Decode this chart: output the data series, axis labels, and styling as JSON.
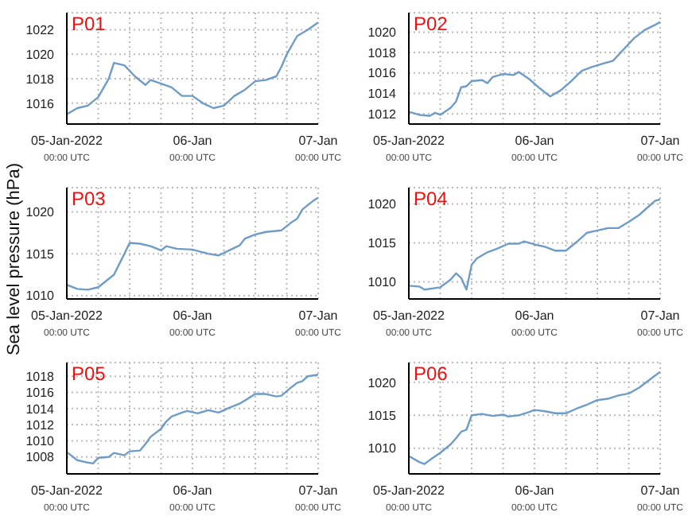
{
  "chart_data": [
    {
      "type": "line",
      "title": "P01",
      "grid": true,
      "xlim": [
        "2022-01-05T00:00",
        "2022-01-07T00:00"
      ],
      "xticks": [
        {
          "value": "2022-01-05T00:00",
          "label": "05-Jan-2022\n00:00 UTC"
        },
        {
          "value": "2022-01-05T06:00",
          "label": null
        },
        {
          "value": "2022-01-05T12:00",
          "label": null
        },
        {
          "value": "2022-01-05T18:00",
          "label": null
        },
        {
          "value": "2022-01-06T00:00",
          "label": "06-Jan\n00:00 UTC"
        },
        {
          "value": "2022-01-06T06:00",
          "label": null
        },
        {
          "value": "2022-01-06T12:00",
          "label": null
        },
        {
          "value": "2022-01-06T18:00",
          "label": null
        },
        {
          "value": "2022-01-07T00:00",
          "label": "07-Jan\n00:00 UTC"
        }
      ],
      "ylim": [
        1014.3,
        1023.4
      ],
      "yticks": [
        1016,
        1018,
        1020,
        1022
      ],
      "x": [
        "2022-01-05T00:00",
        "2022-01-05T02:00",
        "2022-01-05T04:00",
        "2022-01-05T06:00",
        "2022-01-05T08:00",
        "2022-01-05T09:00",
        "2022-01-05T11:00",
        "2022-01-05T13:00",
        "2022-01-05T15:00",
        "2022-01-05T16:00",
        "2022-01-05T18:00",
        "2022-01-05T20:00",
        "2022-01-05T22:00",
        "2022-01-06T00:00",
        "2022-01-06T02:00",
        "2022-01-06T04:00",
        "2022-01-06T06:00",
        "2022-01-06T08:00",
        "2022-01-06T10:00",
        "2022-01-06T12:00",
        "2022-01-06T14:00",
        "2022-01-06T16:00",
        "2022-01-06T17:00",
        "2022-01-06T18:00",
        "2022-01-06T20:00",
        "2022-01-06T22:00",
        "2022-01-07T00:00"
      ],
      "series": [
        {
          "color": "#6e9cc8",
          "values": [
            1015.1,
            1015.6,
            1015.8,
            1016.5,
            1018.0,
            1019.3,
            1019.1,
            1018.2,
            1017.5,
            1017.9,
            1017.6,
            1017.3,
            1016.6,
            1016.6,
            1016.0,
            1015.6,
            1015.8,
            1016.6,
            1017.1,
            1017.8,
            1017.9,
            1018.2,
            1019.0,
            1020.0,
            1021.5,
            1022.0,
            1022.6
          ]
        }
      ]
    },
    {
      "type": "line",
      "title": "P02",
      "grid": true,
      "xlim": [
        "2022-01-05T00:00",
        "2022-01-07T00:00"
      ],
      "xticks": [
        {
          "value": "2022-01-05T00:00",
          "label": "05-Jan-2022\n00:00 UTC"
        },
        {
          "value": "2022-01-05T06:00",
          "label": null
        },
        {
          "value": "2022-01-05T12:00",
          "label": null
        },
        {
          "value": "2022-01-05T18:00",
          "label": null
        },
        {
          "value": "2022-01-06T00:00",
          "label": "06-Jan\n00:00 UTC"
        },
        {
          "value": "2022-01-06T06:00",
          "label": null
        },
        {
          "value": "2022-01-06T12:00",
          "label": null
        },
        {
          "value": "2022-01-06T18:00",
          "label": null
        },
        {
          "value": "2022-01-07T00:00",
          "label": "07-Jan\n00:00 UTC"
        }
      ],
      "ylim": [
        1011,
        1021.9
      ],
      "yticks": [
        1012,
        1014,
        1016,
        1018,
        1020
      ],
      "x": [
        "2022-01-05T00:00",
        "2022-01-05T02:00",
        "2022-01-05T04:00",
        "2022-01-05T05:00",
        "2022-01-05T06:00",
        "2022-01-05T08:00",
        "2022-01-05T09:00",
        "2022-01-05T10:00",
        "2022-01-05T11:00",
        "2022-01-05T12:00",
        "2022-01-05T14:00",
        "2022-01-05T15:00",
        "2022-01-05T16:00",
        "2022-01-05T18:00",
        "2022-01-05T20:00",
        "2022-01-05T21:00",
        "2022-01-05T23:00",
        "2022-01-06T01:00",
        "2022-01-06T03:00",
        "2022-01-06T05:00",
        "2022-01-06T07:00",
        "2022-01-06T09:00",
        "2022-01-06T11:00",
        "2022-01-06T13:00",
        "2022-01-06T15:00",
        "2022-01-06T17:00",
        "2022-01-06T19:00",
        "2022-01-06T21:00",
        "2022-01-06T23:00",
        "2022-01-07T00:00"
      ],
      "series": [
        {
          "color": "#6e9cc8",
          "values": [
            1012.2,
            1011.9,
            1011.8,
            1012.1,
            1011.9,
            1012.6,
            1013.2,
            1014.6,
            1014.7,
            1015.2,
            1015.3,
            1015.0,
            1015.6,
            1015.9,
            1015.8,
            1016.1,
            1015.4,
            1014.5,
            1013.7,
            1014.3,
            1015.2,
            1016.2,
            1016.6,
            1016.9,
            1017.2,
            1018.3,
            1019.4,
            1020.2,
            1020.7,
            1021.0
          ]
        }
      ]
    },
    {
      "type": "line",
      "title": "P03",
      "ylabel": "Sea level pressure (hPa)",
      "grid": true,
      "xlim": [
        "2022-01-05T00:00",
        "2022-01-07T00:00"
      ],
      "xticks": [
        {
          "value": "2022-01-05T00:00",
          "label": "05-Jan-2022\n00:00 UTC"
        },
        {
          "value": "2022-01-05T06:00",
          "label": null
        },
        {
          "value": "2022-01-05T12:00",
          "label": null
        },
        {
          "value": "2022-01-05T18:00",
          "label": null
        },
        {
          "value": "2022-01-06T00:00",
          "label": "06-Jan\n00:00 UTC"
        },
        {
          "value": "2022-01-06T06:00",
          "label": null
        },
        {
          "value": "2022-01-06T12:00",
          "label": null
        },
        {
          "value": "2022-01-06T18:00",
          "label": null
        },
        {
          "value": "2022-01-07T00:00",
          "label": "07-Jan\n00:00 UTC"
        }
      ],
      "ylim": [
        1009.6,
        1022.9
      ],
      "yticks": [
        1010,
        1015,
        1020
      ],
      "x": [
        "2022-01-05T00:00",
        "2022-01-05T02:00",
        "2022-01-05T04:00",
        "2022-01-05T06:00",
        "2022-01-05T08:00",
        "2022-01-05T09:00",
        "2022-01-05T11:00",
        "2022-01-05T12:00",
        "2022-01-05T14:00",
        "2022-01-05T16:00",
        "2022-01-05T18:00",
        "2022-01-05T19:00",
        "2022-01-05T21:00",
        "2022-01-06T00:00",
        "2022-01-06T03:00",
        "2022-01-06T05:00",
        "2022-01-06T07:00",
        "2022-01-06T09:00",
        "2022-01-06T10:00",
        "2022-01-06T12:00",
        "2022-01-06T14:00",
        "2022-01-06T17:00",
        "2022-01-06T19:00",
        "2022-01-06T20:00",
        "2022-01-06T21:00",
        "2022-01-06T23:00",
        "2022-01-07T00:00"
      ],
      "series": [
        {
          "color": "#6e9cc8",
          "values": [
            1011.3,
            1010.8,
            1010.7,
            1011.0,
            1012.0,
            1012.5,
            1015.0,
            1016.3,
            1016.2,
            1015.9,
            1015.4,
            1015.9,
            1015.6,
            1015.5,
            1015.0,
            1014.8,
            1015.4,
            1016.0,
            1016.8,
            1017.3,
            1017.6,
            1017.8,
            1018.8,
            1019.2,
            1020.3,
            1021.3,
            1021.7
          ]
        }
      ]
    },
    {
      "type": "line",
      "title": "P04",
      "grid": true,
      "xlim": [
        "2022-01-05T00:00",
        "2022-01-07T00:00"
      ],
      "xticks": [
        {
          "value": "2022-01-05T00:00",
          "label": "05-Jan-2022\n00:00 UTC"
        },
        {
          "value": "2022-01-05T06:00",
          "label": null
        },
        {
          "value": "2022-01-05T12:00",
          "label": null
        },
        {
          "value": "2022-01-05T18:00",
          "label": null
        },
        {
          "value": "2022-01-06T00:00",
          "label": "06-Jan\n00:00 UTC"
        },
        {
          "value": "2022-01-06T06:00",
          "label": null
        },
        {
          "value": "2022-01-06T12:00",
          "label": null
        },
        {
          "value": "2022-01-06T18:00",
          "label": null
        },
        {
          "value": "2022-01-07T00:00",
          "label": "07-Jan\n00:00 UTC"
        }
      ],
      "ylim": [
        1007.8,
        1022.1
      ],
      "yticks": [
        1010,
        1015,
        1020
      ],
      "x": [
        "2022-01-05T00:00",
        "2022-01-05T02:00",
        "2022-01-05T03:00",
        "2022-01-05T06:00",
        "2022-01-05T08:00",
        "2022-01-05T09:00",
        "2022-01-05T10:00",
        "2022-01-05T11:00",
        "2022-01-05T12:00",
        "2022-01-05T13:00",
        "2022-01-05T15:00",
        "2022-01-05T17:00",
        "2022-01-05T19:00",
        "2022-01-05T21:00",
        "2022-01-05T22:00",
        "2022-01-06T00:00",
        "2022-01-06T02:00",
        "2022-01-06T04:00",
        "2022-01-06T06:00",
        "2022-01-06T08:00",
        "2022-01-06T10:00",
        "2022-01-06T12:00",
        "2022-01-06T14:00",
        "2022-01-06T16:00",
        "2022-01-06T18:00",
        "2022-01-06T20:00",
        "2022-01-06T22:00",
        "2022-01-06T23:00",
        "2022-01-07T00:00"
      ],
      "series": [
        {
          "color": "#6e9cc8",
          "values": [
            1009.5,
            1009.4,
            1009.0,
            1009.3,
            1010.3,
            1011.1,
            1010.5,
            1009.0,
            1012.2,
            1013.0,
            1013.8,
            1014.3,
            1014.9,
            1014.9,
            1015.2,
            1014.8,
            1014.5,
            1014.0,
            1014.0,
            1015.1,
            1016.3,
            1016.6,
            1016.9,
            1016.9,
            1017.7,
            1018.6,
            1019.8,
            1020.4,
            1020.6
          ]
        }
      ]
    },
    {
      "type": "line",
      "title": "P05",
      "grid": true,
      "xlim": [
        "2022-01-05T00:00",
        "2022-01-07T00:00"
      ],
      "xticks": [
        {
          "value": "2022-01-05T00:00",
          "label": "05-Jan-2022\n00:00 UTC"
        },
        {
          "value": "2022-01-05T06:00",
          "label": null
        },
        {
          "value": "2022-01-05T12:00",
          "label": null
        },
        {
          "value": "2022-01-05T18:00",
          "label": null
        },
        {
          "value": "2022-01-06T00:00",
          "label": "06-Jan\n00:00 UTC"
        },
        {
          "value": "2022-01-06T06:00",
          "label": null
        },
        {
          "value": "2022-01-06T12:00",
          "label": null
        },
        {
          "value": "2022-01-06T18:00",
          "label": null
        },
        {
          "value": "2022-01-07T00:00",
          "label": "07-Jan\n00:00 UTC"
        }
      ],
      "ylim": [
        1005.9,
        1019.7
      ],
      "yticks": [
        1008,
        1010,
        1012,
        1014,
        1016,
        1018
      ],
      "x": [
        "2022-01-05T00:00",
        "2022-01-05T02:00",
        "2022-01-05T04:00",
        "2022-01-05T05:00",
        "2022-01-05T06:00",
        "2022-01-05T08:00",
        "2022-01-05T09:00",
        "2022-01-05T11:00",
        "2022-01-05T12:00",
        "2022-01-05T14:00",
        "2022-01-05T15:00",
        "2022-01-05T16:00",
        "2022-01-05T18:00",
        "2022-01-05T19:00",
        "2022-01-05T20:00",
        "2022-01-05T22:00",
        "2022-01-05T23:00",
        "2022-01-06T01:00",
        "2022-01-06T03:00",
        "2022-01-06T05:00",
        "2022-01-06T07:00",
        "2022-01-06T09:00",
        "2022-01-06T11:00",
        "2022-01-06T12:00",
        "2022-01-06T14:00",
        "2022-01-06T16:00",
        "2022-01-06T17:00",
        "2022-01-06T19:00",
        "2022-01-06T20:00",
        "2022-01-06T21:00",
        "2022-01-06T22:00",
        "2022-01-07T00:00"
      ],
      "series": [
        {
          "color": "#6e9cc8",
          "values": [
            1008.6,
            1007.6,
            1007.3,
            1007.2,
            1007.9,
            1008.0,
            1008.5,
            1008.2,
            1008.7,
            1008.8,
            1009.6,
            1010.5,
            1011.5,
            1012.4,
            1013.0,
            1013.5,
            1013.7,
            1013.4,
            1013.8,
            1013.5,
            1014.1,
            1014.6,
            1015.4,
            1015.8,
            1015.8,
            1015.5,
            1015.6,
            1016.7,
            1017.2,
            1017.4,
            1018.0,
            1018.2
          ]
        }
      ]
    },
    {
      "type": "line",
      "title": "P06",
      "grid": true,
      "xlim": [
        "2022-01-05T00:00",
        "2022-01-07T00:00"
      ],
      "xticks": [
        {
          "value": "2022-01-05T00:00",
          "label": "05-Jan-2022\n00:00 UTC"
        },
        {
          "value": "2022-01-05T06:00",
          "label": null
        },
        {
          "value": "2022-01-05T12:00",
          "label": null
        },
        {
          "value": "2022-01-05T18:00",
          "label": null
        },
        {
          "value": "2022-01-06T00:00",
          "label": "06-Jan\n00:00 UTC"
        },
        {
          "value": "2022-01-06T06:00",
          "label": null
        },
        {
          "value": "2022-01-06T12:00",
          "label": null
        },
        {
          "value": "2022-01-06T18:00",
          "label": null
        },
        {
          "value": "2022-01-07T00:00",
          "label": "07-Jan\n00:00 UTC"
        }
      ],
      "ylim": [
        1006.1,
        1023
      ],
      "yticks": [
        1010,
        1015,
        1020
      ],
      "x": [
        "2022-01-05T00:00",
        "2022-01-05T02:00",
        "2022-01-05T03:00",
        "2022-01-05T04:00",
        "2022-01-05T06:00",
        "2022-01-05T08:00",
        "2022-01-05T09:00",
        "2022-01-05T10:00",
        "2022-01-05T11:00",
        "2022-01-05T12:00",
        "2022-01-05T14:00",
        "2022-01-05T16:00",
        "2022-01-05T18:00",
        "2022-01-05T19:00",
        "2022-01-05T21:00",
        "2022-01-05T23:00",
        "2022-01-06T00:00",
        "2022-01-06T02:00",
        "2022-01-06T04:00",
        "2022-01-06T06:00",
        "2022-01-06T08:00",
        "2022-01-06T10:00",
        "2022-01-06T12:00",
        "2022-01-06T14:00",
        "2022-01-06T16:00",
        "2022-01-06T18:00",
        "2022-01-06T20:00",
        "2022-01-06T22:00",
        "2022-01-06T23:00",
        "2022-01-07T00:00"
      ],
      "series": [
        {
          "color": "#6e9cc8",
          "values": [
            1008.8,
            1007.9,
            1007.6,
            1008.2,
            1009.3,
            1010.6,
            1011.5,
            1012.5,
            1012.8,
            1015.0,
            1015.2,
            1014.9,
            1015.1,
            1014.8,
            1015.0,
            1015.5,
            1015.8,
            1015.6,
            1015.3,
            1015.3,
            1016.0,
            1016.6,
            1017.3,
            1017.5,
            1018.0,
            1018.3,
            1019.2,
            1020.4,
            1021.0,
            1021.6
          ]
        }
      ]
    }
  ]
}
